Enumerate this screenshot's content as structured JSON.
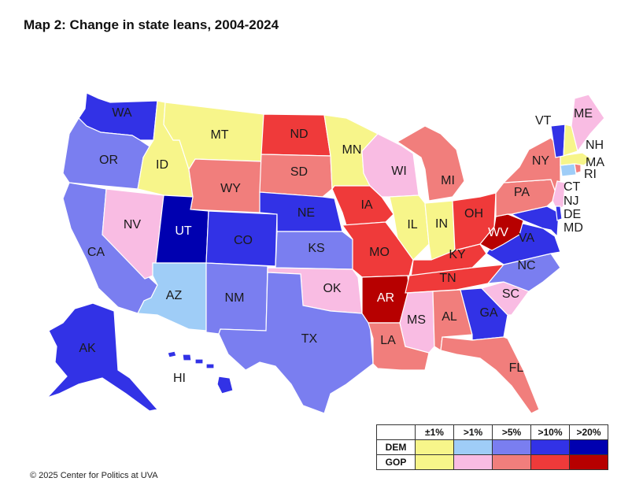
{
  "title": "Map 2: Change in state leans, 2004-2024",
  "credit": "© 2025 Center for Politics at UVA",
  "colors": {
    "dem1": "#f7f58a",
    "dem2": "#9fcdf7",
    "dem3": "#7a7ef0",
    "dem4": "#3232e6",
    "dem5": "#0000b0",
    "gop1": "#f7f58a",
    "gop2": "#f9bce3",
    "gop3": "#f17e7c",
    "gop4": "#ef3a3a",
    "gop5": "#b70000"
  },
  "legend": {
    "headers": [
      "±1%",
      ">1%",
      ">5%",
      ">10%",
      ">20%"
    ],
    "rows": [
      {
        "label": "DEM",
        "colors": [
          "#f7f58a",
          "#9fcdf7",
          "#7a7ef0",
          "#3232e6",
          "#0000b0"
        ]
      },
      {
        "label": "GOP",
        "colors": [
          "#f7f58a",
          "#f9bce3",
          "#f17e7c",
          "#ef3a3a",
          "#b70000"
        ]
      }
    ]
  },
  "states": [
    {
      "abbr": "WA",
      "category": "dem4"
    },
    {
      "abbr": "OR",
      "category": "dem3"
    },
    {
      "abbr": "CA",
      "category": "dem3"
    },
    {
      "abbr": "NV",
      "category": "gop2"
    },
    {
      "abbr": "ID",
      "category": "dem1"
    },
    {
      "abbr": "MT",
      "category": "dem1"
    },
    {
      "abbr": "WY",
      "category": "gop3"
    },
    {
      "abbr": "UT",
      "category": "dem5"
    },
    {
      "abbr": "AZ",
      "category": "dem2"
    },
    {
      "abbr": "CO",
      "category": "dem4"
    },
    {
      "abbr": "NM",
      "category": "dem3"
    },
    {
      "abbr": "ND",
      "category": "gop4"
    },
    {
      "abbr": "SD",
      "category": "gop3"
    },
    {
      "abbr": "NE",
      "category": "dem4"
    },
    {
      "abbr": "KS",
      "category": "dem3"
    },
    {
      "abbr": "OK",
      "category": "gop2"
    },
    {
      "abbr": "TX",
      "category": "dem3"
    },
    {
      "abbr": "MN",
      "category": "dem1"
    },
    {
      "abbr": "IA",
      "category": "gop4"
    },
    {
      "abbr": "MO",
      "category": "gop4"
    },
    {
      "abbr": "AR",
      "category": "gop5"
    },
    {
      "abbr": "LA",
      "category": "gop3"
    },
    {
      "abbr": "WI",
      "category": "gop2"
    },
    {
      "abbr": "IL",
      "category": "dem1"
    },
    {
      "abbr": "MI",
      "category": "gop3"
    },
    {
      "abbr": "IN",
      "category": "dem1"
    },
    {
      "abbr": "OH",
      "category": "gop4"
    },
    {
      "abbr": "KY",
      "category": "gop4"
    },
    {
      "abbr": "TN",
      "category": "gop4"
    },
    {
      "abbr": "MS",
      "category": "gop2"
    },
    {
      "abbr": "AL",
      "category": "gop3"
    },
    {
      "abbr": "GA",
      "category": "dem4"
    },
    {
      "abbr": "FL",
      "category": "gop3"
    },
    {
      "abbr": "SC",
      "category": "gop2"
    },
    {
      "abbr": "NC",
      "category": "dem3"
    },
    {
      "abbr": "VA",
      "category": "dem4"
    },
    {
      "abbr": "WV",
      "category": "gop5"
    },
    {
      "abbr": "PA",
      "category": "gop3"
    },
    {
      "abbr": "NY",
      "category": "gop3"
    },
    {
      "abbr": "VT",
      "category": "dem4"
    },
    {
      "abbr": "NH",
      "category": "dem1"
    },
    {
      "abbr": "ME",
      "category": "gop2"
    },
    {
      "abbr": "MA",
      "category": "dem1"
    },
    {
      "abbr": "RI",
      "category": "gop3"
    },
    {
      "abbr": "CT",
      "category": "dem2"
    },
    {
      "abbr": "NJ",
      "category": "gop2"
    },
    {
      "abbr": "DE",
      "category": "dem4"
    },
    {
      "abbr": "MD",
      "category": "dem4"
    },
    {
      "abbr": "AK",
      "category": "dem4"
    },
    {
      "abbr": "HI",
      "category": "dem4"
    }
  ]
}
